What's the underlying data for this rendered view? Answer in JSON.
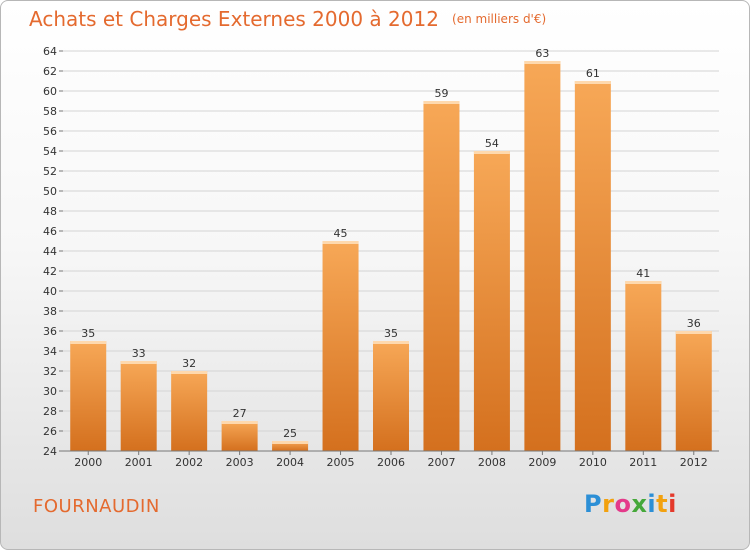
{
  "title": {
    "main": "Achats et Charges Externes 2000 à 2012",
    "unit": "(en milliers d'€)"
  },
  "commune": "FOURNAUDIN",
  "logo": {
    "text": "Proxiti",
    "letters": [
      {
        "ch": "P",
        "color": "#2c8fd6"
      },
      {
        "ch": "r",
        "color": "#f2a10f"
      },
      {
        "ch": "o",
        "color": "#e43a8a"
      },
      {
        "ch": "x",
        "color": "#45a83a"
      },
      {
        "ch": "i",
        "color": "#2c8fd6"
      },
      {
        "ch": "t",
        "color": "#f2a10f"
      },
      {
        "ch": "i",
        "color": "#e4392b"
      }
    ]
  },
  "colors": {
    "accent": "#e46a2f",
    "bar_light": "#f7a857",
    "bar_dark": "#db7421"
  },
  "chart_data": {
    "type": "bar",
    "title": "Achats et Charges Externes 2000 à 2012",
    "subtitle": "(en milliers d'€)",
    "categories": [
      "2000",
      "2001",
      "2002",
      "2003",
      "2004",
      "2005",
      "2006",
      "2007",
      "2008",
      "2009",
      "2010",
      "2011",
      "2012"
    ],
    "values": [
      35,
      33,
      32,
      27,
      25,
      45,
      35,
      59,
      54,
      63,
      61,
      41,
      36
    ],
    "ylim": [
      24,
      64
    ],
    "yticks": [
      24,
      26,
      28,
      30,
      32,
      34,
      36,
      38,
      40,
      42,
      44,
      46,
      48,
      50,
      52,
      54,
      56,
      58,
      60,
      62,
      64
    ],
    "xlabel": "",
    "ylabel": "",
    "grid": true,
    "data_labels": true
  }
}
